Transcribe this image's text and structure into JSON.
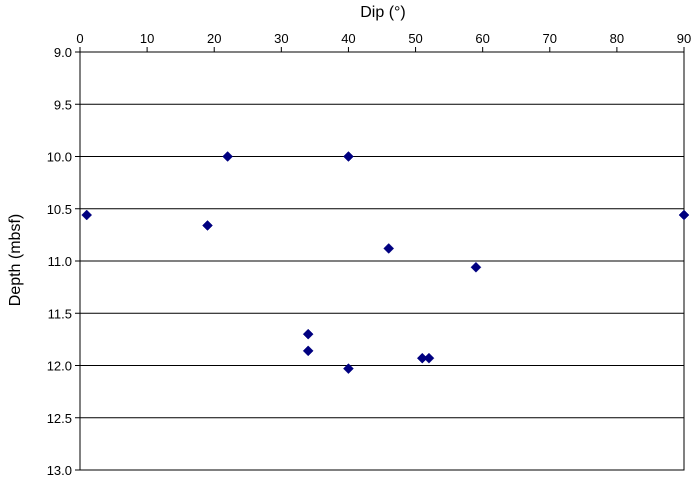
{
  "chart_data": {
    "type": "scatter",
    "xlabel": "Dip (°)",
    "ylabel": "Depth (mbsf)",
    "x_axis_position": "top",
    "y_axis_inverted": true,
    "xlim": [
      0,
      90
    ],
    "ylim": [
      9.0,
      13.0
    ],
    "x_ticks": [
      "0",
      "10",
      "20",
      "30",
      "40",
      "50",
      "60",
      "70",
      "80",
      "90"
    ],
    "y_ticks": [
      "9.0",
      "9.5",
      "10.0",
      "10.5",
      "11.0",
      "11.5",
      "12.0",
      "12.5",
      "13.0"
    ],
    "grid": "horizontal",
    "marker": "diamond",
    "marker_color": "#000080",
    "points": [
      {
        "x": 1,
        "y": 10.56
      },
      {
        "x": 22,
        "y": 10.0
      },
      {
        "x": 40,
        "y": 10.0
      },
      {
        "x": 19,
        "y": 10.66
      },
      {
        "x": 46,
        "y": 10.88
      },
      {
        "x": 59,
        "y": 11.06
      },
      {
        "x": 90,
        "y": 10.56
      },
      {
        "x": 34,
        "y": 11.7
      },
      {
        "x": 34,
        "y": 11.86
      },
      {
        "x": 40,
        "y": 12.03
      },
      {
        "x": 51,
        "y": 11.93
      },
      {
        "x": 52,
        "y": 11.93
      }
    ]
  }
}
